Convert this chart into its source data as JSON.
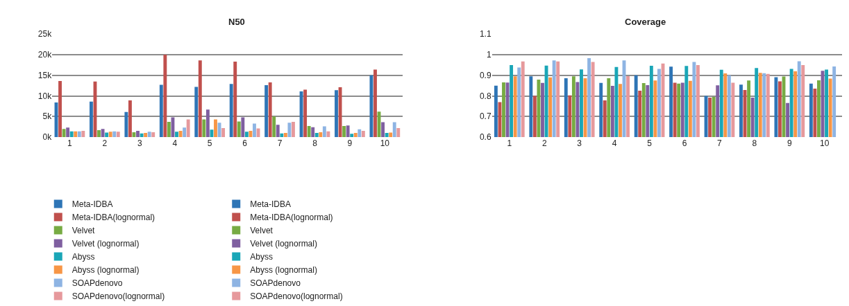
{
  "chart_data": [
    {
      "type": "bar",
      "title": "N50",
      "categories": [
        "1",
        "2",
        "3",
        "4",
        "5",
        "6",
        "7",
        "8",
        "9",
        "10"
      ],
      "ylim": [
        0,
        25000
      ],
      "yticks": [
        {
          "value": 0,
          "label": "0k"
        },
        {
          "value": 5000,
          "label": "5k"
        },
        {
          "value": 10000,
          "label": "10k"
        },
        {
          "value": 15000,
          "label": "15k"
        },
        {
          "value": 20000,
          "label": "20k"
        },
        {
          "value": 25000,
          "label": "25k"
        }
      ],
      "grid": "y",
      "legend": "bottom",
      "series": [
        {
          "name": "Meta-IDBA",
          "color": "#2e75b6",
          "values": [
            8400,
            8600,
            6100,
            12700,
            12200,
            12900,
            12600,
            11100,
            11400,
            15000
          ]
        },
        {
          "name": "Meta-IDBA(lognormal)",
          "color": "#c0504d",
          "values": [
            13600,
            13500,
            8900,
            20000,
            18600,
            18300,
            13300,
            11500,
            12100,
            16400
          ]
        },
        {
          "name": "Velvet",
          "color": "#77ab43",
          "values": [
            2000,
            1700,
            1200,
            3700,
            4300,
            3800,
            5000,
            2700,
            2700,
            6200
          ]
        },
        {
          "name": "Velvet (lognormal)",
          "color": "#7f5fa0",
          "values": [
            2300,
            2000,
            1500,
            4800,
            6700,
            4800,
            3000,
            2400,
            2800,
            3600
          ]
        },
        {
          "name": "Abyss",
          "color": "#1aa6b7",
          "values": [
            1400,
            1100,
            900,
            1300,
            1800,
            1300,
            900,
            1000,
            800,
            1000
          ]
        },
        {
          "name": "Abyss (lognormal)",
          "color": "#f79646",
          "values": [
            1400,
            1300,
            1000,
            1500,
            4300,
            1500,
            1000,
            1200,
            1000,
            1100
          ]
        },
        {
          "name": "SOAPdenovo",
          "color": "#8eb4e3",
          "values": [
            1400,
            1400,
            1300,
            2300,
            3500,
            3300,
            3500,
            2600,
            1900,
            3600
          ]
        },
        {
          "name": "SOAPdenovo(lognormal)",
          "color": "#e6999c",
          "values": [
            1500,
            1300,
            1200,
            4300,
            2200,
            2100,
            3700,
            1400,
            1500,
            2200
          ]
        }
      ]
    },
    {
      "type": "bar",
      "title": "Coverage",
      "categories": [
        "1",
        "2",
        "3",
        "4",
        "5",
        "6",
        "7",
        "8",
        "9",
        "10"
      ],
      "ylim": [
        0.6,
        1.1
      ],
      "yticks": [
        0.6,
        0.7,
        0.8,
        0.9,
        1,
        1.1
      ],
      "grid": "y",
      "legend": "bottom",
      "series": [
        {
          "name": "Meta-IDBA",
          "color": "#2e75b6",
          "values": [
            0.85,
            0.895,
            0.886,
            0.863,
            0.9,
            0.942,
            0.8,
            0.855,
            0.891,
            0.86
          ]
        },
        {
          "name": "Meta-IDBA(lognormal)",
          "color": "#c0504d",
          "values": [
            0.77,
            0.8,
            0.803,
            0.778,
            0.825,
            0.864,
            0.792,
            0.829,
            0.871,
            0.835
          ]
        },
        {
          "name": "Velvet",
          "color": "#77ab43",
          "values": [
            0.866,
            0.879,
            0.895,
            0.886,
            0.862,
            0.86,
            0.795,
            0.875,
            0.894,
            0.876
          ]
        },
        {
          "name": "Velvet (lognormal)",
          "color": "#7f5fa0",
          "values": [
            0.865,
            0.863,
            0.867,
            0.849,
            0.852,
            0.864,
            0.851,
            0.792,
            0.766,
            0.922
          ]
        },
        {
          "name": "Abyss",
          "color": "#1aa6b7",
          "values": [
            0.95,
            0.947,
            0.929,
            0.94,
            0.946,
            0.945,
            0.927,
            0.935,
            0.931,
            0.928
          ]
        },
        {
          "name": "Abyss (lognormal)",
          "color": "#f79646",
          "values": [
            0.895,
            0.89,
            0.886,
            0.858,
            0.875,
            0.873,
            0.909,
            0.912,
            0.919,
            0.884
          ]
        },
        {
          "name": "SOAPdenovo",
          "color": "#8eb4e3",
          "values": [
            0.938,
            0.972,
            0.983,
            0.972,
            0.931,
            0.965,
            0.9,
            0.91,
            0.968,
            0.943
          ]
        },
        {
          "name": "SOAPdenovo(lognormal)",
          "color": "#e6999c",
          "values": [
            0.967,
            0.967,
            0.965,
            0.896,
            0.957,
            0.95,
            0.864,
            0.907,
            0.95,
            null
          ]
        }
      ]
    }
  ]
}
